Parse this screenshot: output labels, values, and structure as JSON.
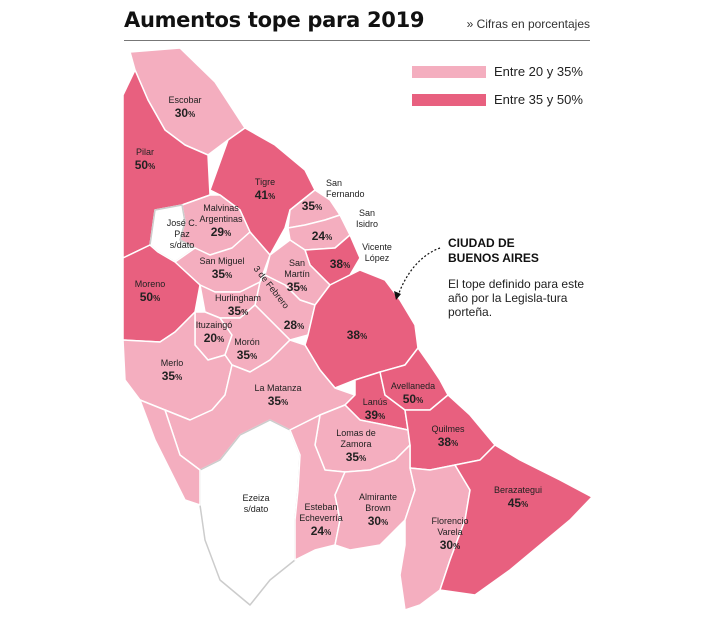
{
  "header": {
    "title": "Aumentos tope para 2019",
    "note": "» Cifras en porcentajes"
  },
  "legend": [
    {
      "label": "Entre 20 y 35%",
      "color": "#f4aebf"
    },
    {
      "label": "Entre 35 y 50%",
      "color": "#e8607f"
    }
  ],
  "colors": {
    "low": "#f4aebf",
    "high": "#e8607f",
    "nodata": "#ffffff",
    "border": "#ffffff"
  },
  "callout": {
    "title": "CIUDAD DE BUENOS AIRES",
    "text": "El tope definido para este año por la Legisla-tura porteña."
  },
  "districts": [
    {
      "name": "Escobar",
      "value": "30",
      "unit": "%"
    },
    {
      "name": "Pilar",
      "value": "50",
      "unit": "%"
    },
    {
      "name": "Tigre",
      "value": "41",
      "unit": "%"
    },
    {
      "name": "San Fernando",
      "value": "35",
      "unit": "%"
    },
    {
      "name": "San Isidro",
      "value": "24",
      "unit": "%"
    },
    {
      "name": "Vicente López",
      "value": "38",
      "unit": "%"
    },
    {
      "name": "Malvinas Argentinas",
      "value": "29",
      "unit": "%"
    },
    {
      "name": "José C. Paz",
      "value": "s/dato",
      "unit": ""
    },
    {
      "name": "San Miguel",
      "value": "35",
      "unit": "%"
    },
    {
      "name": "San Martín",
      "value": "35",
      "unit": "%"
    },
    {
      "name": "3 de Febrero",
      "value": "28",
      "unit": "%"
    },
    {
      "name": "Moreno",
      "value": "50",
      "unit": "%"
    },
    {
      "name": "Hurlingham",
      "value": "35",
      "unit": "%"
    },
    {
      "name": "Ituzaingó",
      "value": "20",
      "unit": "%"
    },
    {
      "name": "Morón",
      "value": "35",
      "unit": "%"
    },
    {
      "name": "Ciudad de Buenos Aires",
      "value": "38",
      "unit": "%"
    },
    {
      "name": "Merlo",
      "value": "35",
      "unit": "%"
    },
    {
      "name": "La Matanza",
      "value": "35",
      "unit": "%"
    },
    {
      "name": "Lanús",
      "value": "39",
      "unit": "%"
    },
    {
      "name": "Avellaneda",
      "value": "50",
      "unit": "%"
    },
    {
      "name": "Lomas de Zamora",
      "value": "35",
      "unit": "%"
    },
    {
      "name": "Quilmes",
      "value": "38",
      "unit": "%"
    },
    {
      "name": "Ezeiza",
      "value": "s/dato",
      "unit": ""
    },
    {
      "name": "Esteban Echeverría",
      "value": "24",
      "unit": "%"
    },
    {
      "name": "Almirante Brown",
      "value": "30",
      "unit": "%"
    },
    {
      "name": "Florencio Varela",
      "value": "30",
      "unit": "%"
    },
    {
      "name": "Berazategui",
      "value": "45",
      "unit": "%"
    }
  ]
}
